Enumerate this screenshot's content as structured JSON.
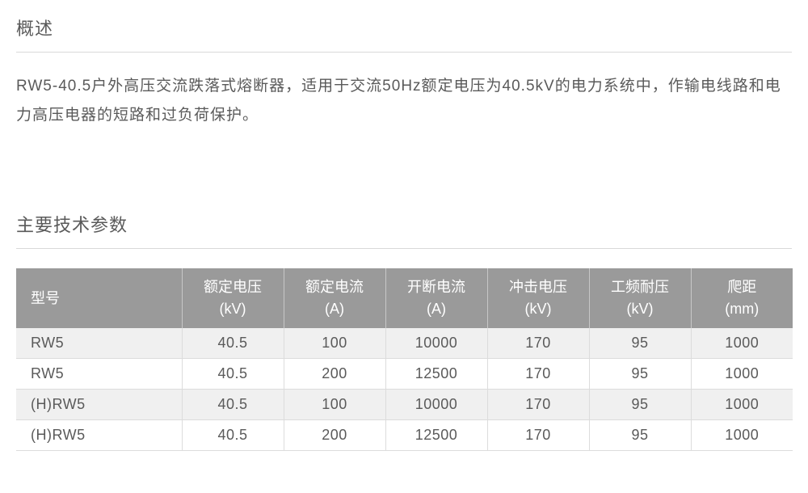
{
  "overview": {
    "heading": "概述",
    "text": "RW5-40.5户外高压交流跌落式熔断器，适用于交流50Hz额定电压为40.5kV的电力系统中，作输电线路和电力高压电器的短路和过负荷保护。"
  },
  "specs": {
    "heading": "主要技术参数",
    "table": {
      "header_bg": "#9a9a9a",
      "header_fg": "#ffffff",
      "row_odd_bg": "#f0f0f0",
      "row_even_bg": "#ffffff",
      "border_color": "#dcdcdc",
      "columns": [
        {
          "label": "型号",
          "unit": ""
        },
        {
          "label": "额定电压",
          "unit": "(kV)"
        },
        {
          "label": "额定电流",
          "unit": "(A)"
        },
        {
          "label": "开断电流",
          "unit": "(A)"
        },
        {
          "label": "冲击电压",
          "unit": "(kV)"
        },
        {
          "label": "工频耐压",
          "unit": "(kV)"
        },
        {
          "label": "爬距",
          "unit": "(mm)"
        }
      ],
      "rows": [
        [
          "RW5",
          "40.5",
          "100",
          "10000",
          "170",
          "95",
          "1000"
        ],
        [
          "RW5",
          "40.5",
          "200",
          "12500",
          "170",
          "95",
          "1000"
        ],
        [
          "(H)RW5",
          "40.5",
          "100",
          "10000",
          "170",
          "95",
          "1000"
        ],
        [
          "(H)RW5",
          "40.5",
          "200",
          "12500",
          "170",
          "95",
          "1000"
        ]
      ]
    }
  }
}
